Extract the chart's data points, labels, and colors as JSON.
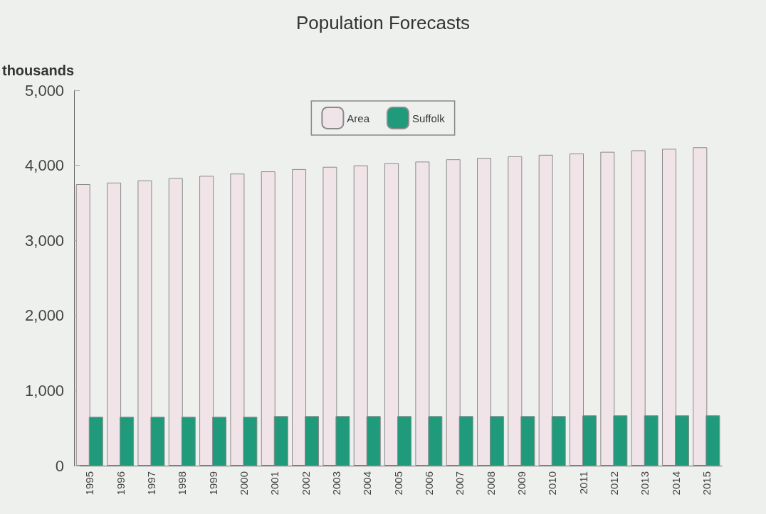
{
  "chart_data": {
    "type": "bar",
    "title": "Population Forecasts",
    "ylabel": "thousands",
    "categories": [
      "1995",
      "1996",
      "1997",
      "1998",
      "1999",
      "2000",
      "2001",
      "2002",
      "2003",
      "2004",
      "2005",
      "2006",
      "2007",
      "2008",
      "2009",
      "2010",
      "2011",
      "2012",
      "2013",
      "2014",
      "2015"
    ],
    "series": [
      {
        "name": "Area",
        "color": "#f0e4e8",
        "values": [
          3750,
          3770,
          3800,
          3830,
          3860,
          3890,
          3920,
          3950,
          3980,
          4000,
          4030,
          4050,
          4080,
          4100,
          4120,
          4140,
          4160,
          4180,
          4200,
          4220,
          4240
        ]
      },
      {
        "name": "Suffolk",
        "color": "#1f9a7a",
        "values": [
          650,
          650,
          650,
          650,
          650,
          650,
          660,
          660,
          660,
          660,
          660,
          660,
          660,
          660,
          660,
          660,
          670,
          670,
          670,
          670,
          670
        ]
      }
    ],
    "ylim": [
      0,
      5000
    ],
    "yticks": [
      0,
      {
        "value": 1000,
        "label": "1,000"
      },
      {
        "value": 2000,
        "label": "2,000"
      },
      {
        "value": 3000,
        "label": "3,000"
      },
      {
        "value": 4000,
        "label": "4,000"
      },
      {
        "value": 5000,
        "label": "5,000"
      }
    ],
    "grid": false,
    "legend": "top"
  }
}
